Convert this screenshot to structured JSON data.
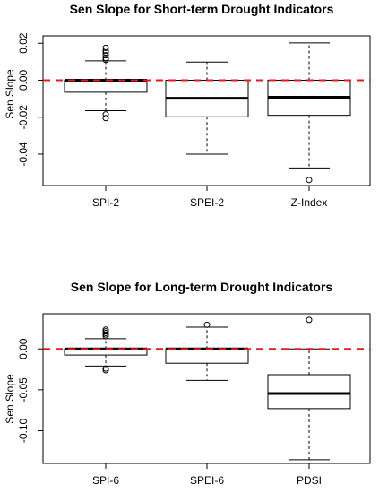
{
  "chart_data": [
    {
      "type": "boxplot",
      "title": "Sen Slope for Short-term Drought Indicators",
      "xlabel": "",
      "ylabel": "Sen Slope",
      "ylim": [
        -0.057,
        0.024
      ],
      "yticks": [
        0.02,
        0.0,
        -0.02,
        -0.04
      ],
      "ytick_labels": [
        "0.02",
        "0.00",
        "-0.02",
        "-0.04"
      ],
      "reference_line": {
        "y": 0.0,
        "color": "#e41a1c",
        "style": "dashed"
      },
      "categories": [
        "SPI-2",
        "SPEI-2",
        "Z-Index"
      ],
      "boxes": [
        {
          "name": "SPI-2",
          "whisker_low": -0.0165,
          "q1": -0.0065,
          "median": 0.0,
          "q3": 0.0,
          "whisker_high": 0.0105,
          "outliers": [
            0.0175,
            0.016,
            0.015,
            0.0135,
            0.012,
            0.011,
            -0.0185,
            -0.0205
          ]
        },
        {
          "name": "SPEI-2",
          "whisker_low": -0.04,
          "q1": -0.0198,
          "median": -0.0098,
          "q3": 0.0,
          "whisker_high": 0.0098,
          "outliers": []
        },
        {
          "name": "Z-Index",
          "whisker_low": -0.0475,
          "q1": -0.019,
          "median": -0.0092,
          "q3": 0.0,
          "whisker_high": 0.0202,
          "outliers": [
            -0.054
          ]
        }
      ]
    },
    {
      "type": "boxplot",
      "title": "Sen Slope for Long-term Drought Indicators",
      "xlabel": "",
      "ylabel": "Sen Slope",
      "ylim": [
        -0.14,
        0.043
      ],
      "yticks": [
        0.0,
        -0.05,
        -0.1
      ],
      "ytick_labels": [
        "0.00",
        "-0.05",
        "-0.10"
      ],
      "reference_line": {
        "y": 0.0,
        "color": "#e41a1c",
        "style": "dashed"
      },
      "categories": [
        "SPI-6",
        "SPEI-6",
        "PDSI"
      ],
      "boxes": [
        {
          "name": "SPI-6",
          "whisker_low": -0.021,
          "q1": -0.0075,
          "median": 0.0,
          "q3": 0.0,
          "whisker_high": 0.0125,
          "outliers": [
            0.0235,
            0.0215,
            0.0195,
            0.0175,
            0.0155,
            -0.024,
            -0.026
          ]
        },
        {
          "name": "SPEI-6",
          "whisker_low": -0.0385,
          "q1": -0.0175,
          "median": 0.0,
          "q3": 0.0,
          "whisker_high": 0.0265,
          "outliers": [
            0.0295
          ]
        },
        {
          "name": "PDSI",
          "whisker_low": -0.1355,
          "q1": -0.073,
          "median": -0.0545,
          "q3": -0.0315,
          "whisker_high": 0.0,
          "outliers": [
            0.0355
          ]
        }
      ]
    }
  ]
}
